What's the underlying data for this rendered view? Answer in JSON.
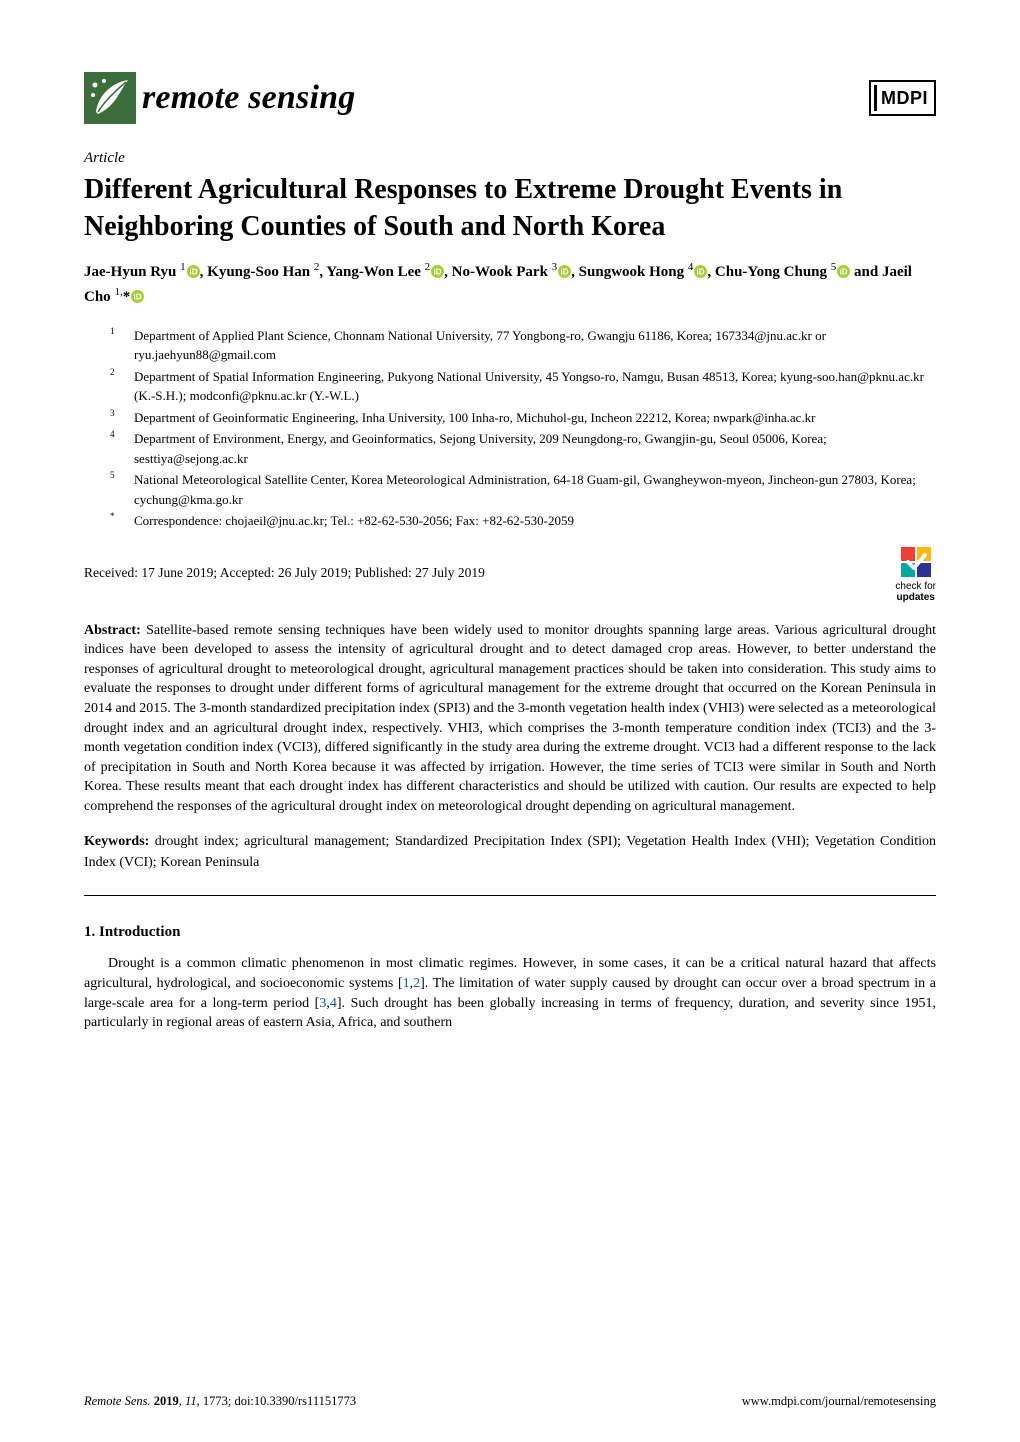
{
  "header": {
    "journal_name": "remote sensing",
    "publisher": "MDPI",
    "leaf_color": "#3b6e3b",
    "leaf_accent": "#ffffff"
  },
  "article": {
    "type": "Article",
    "title": "Different Agricultural Responses to Extreme Drought Events in Neighboring Counties of South and North Korea",
    "authors_html": "Jae-Hyun Ryu <sup>1</sup>{ORCID}, Kyung-Soo Han <sup>2</sup>, Yang-Won Lee <sup>2</sup>{ORCID}, No-Wook Park <sup>3</sup>{ORCID}, Sungwook Hong <sup>4</sup>{ORCID}, Chu-Yong Chung <sup>5</sup>{ORCID} and Jaeil Cho <sup>1,</sup>*{ORCID}",
    "orcid_color": "#a6ce39",
    "affiliations": [
      {
        "num": "1",
        "text": "Department of Applied Plant Science, Chonnam National University, 77 Yongbong-ro, Gwangju 61186, Korea; 167334@jnu.ac.kr or ryu.jaehyun88@gmail.com"
      },
      {
        "num": "2",
        "text": "Department of Spatial Information Engineering, Pukyong National University, 45 Yongso-ro, Namgu, Busan 48513, Korea; kyung-soo.han@pknu.ac.kr (K.-S.H.); modconfi@pknu.ac.kr (Y.-W.L.)"
      },
      {
        "num": "3",
        "text": "Department of Geoinformatic Engineering, Inha University, 100 Inha-ro, Michuhol-gu, Incheon 22212, Korea; nwpark@inha.ac.kr"
      },
      {
        "num": "4",
        "text": "Department of Environment, Energy, and Geoinformatics, Sejong University, 209 Neungdong-ro, Gwangjin-gu, Seoul 05006, Korea; sesttiya@sejong.ac.kr"
      },
      {
        "num": "5",
        "text": "National Meteorological Satellite Center, Korea Meteorological Administration, 64-18 Guam-gil, Gwangheywon-myeon, Jincheon-gun 27803, Korea; cychung@kma.go.kr"
      },
      {
        "num": "*",
        "text": "Correspondence: chojaeil@jnu.ac.kr; Tel.: +82-62-530-2056; Fax: +82-62-530-2059"
      }
    ],
    "received": "Received: 17 June 2019; Accepted: 26 July 2019; Published: 27 July 2019",
    "check_updates_top": "check for",
    "check_updates_bottom": "updates",
    "crossmark_colors": {
      "tl": "#ef3e36",
      "tr": "#fdb813",
      "bl": "#00a99d",
      "br": "#2e3192"
    }
  },
  "abstract": {
    "label": "Abstract:",
    "text": " Satellite-based remote sensing techniques have been widely used to monitor droughts spanning large areas. Various agricultural drought indices have been developed to assess the intensity of agricultural drought and to detect damaged crop areas. However, to better understand the responses of agricultural drought to meteorological drought, agricultural management practices should be taken into consideration. This study aims to evaluate the responses to drought under different forms of agricultural management for the extreme drought that occurred on the Korean Peninsula in 2014 and 2015. The 3-month standardized precipitation index (SPI3) and the 3-month vegetation health index (VHI3) were selected as a meteorological drought index and an agricultural drought index, respectively. VHI3, which comprises the 3-month temperature condition index (TCI3) and the 3-month vegetation condition index (VCI3), differed significantly in the study area during the extreme drought. VCI3 had a different response to the lack of precipitation in South and North Korea because it was affected by irrigation. However, the time series of TCI3 were similar in South and North Korea. These results meant that each drought index has different characteristics and should be utilized with caution. Our results are expected to help comprehend the responses of the agricultural drought index on meteorological drought depending on agricultural management."
  },
  "keywords": {
    "label": "Keywords:",
    "text": " drought index; agricultural management; Standardized Precipitation Index (SPI); Vegetation Health Index (VHI); Vegetation Condition Index (VCI); Korean Peninsula"
  },
  "section": {
    "heading": "1. Introduction",
    "body": "Drought is a common climatic phenomenon in most climatic regimes. However, in some cases, it can be a critical natural hazard that affects agricultural, hydrological, and socioeconomic systems [1,2]. The limitation of water supply caused by drought can occur over a broad spectrum in a large-scale area for a long-term period [3,4]. Such drought has been globally increasing in terms of frequency, duration, and severity since 1951, particularly in regional areas of eastern Asia, Africa, and southern",
    "cites": [
      "1",
      "2",
      "3",
      "4"
    ],
    "cite_color": "#0a5aa6"
  },
  "footer": {
    "left_html": "<em>Remote Sens.</em> <b>2019</b>, <em>11</em>, 1773; doi:10.3390/rs11151773",
    "right": "www.mdpi.com/journal/remotesensing"
  }
}
